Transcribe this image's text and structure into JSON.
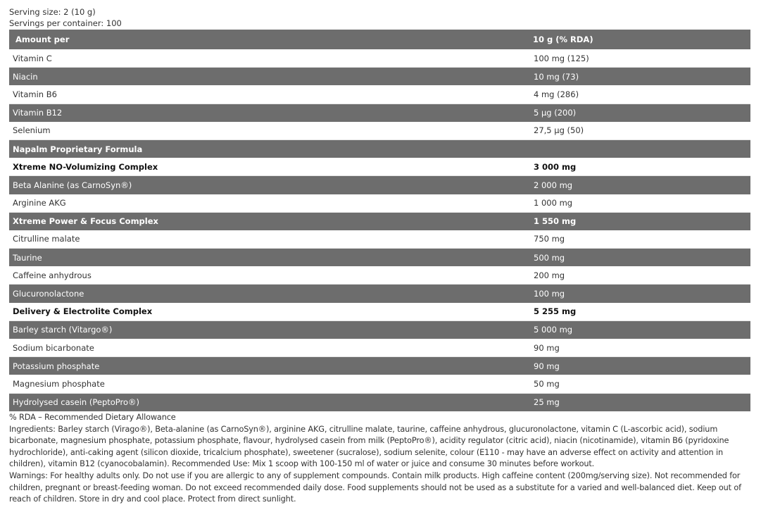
{
  "serving_size": "Serving size: 2 (10 g)",
  "servings_per_container": "Servings per container: 100",
  "table": {
    "header": [
      "Amount per",
      "10 g (% RDA)"
    ],
    "rows": [
      {
        "name": "Vitamin C",
        "value": "100 mg (125)",
        "style": "light"
      },
      {
        "name": "Niacin",
        "value": "10 mg (73)",
        "style": "dark"
      },
      {
        "name": "Vitamin B6",
        "value": "4 mg (286)",
        "style": "light"
      },
      {
        "name": "Vitamin B12",
        "value": "5 µg (200)",
        "style": "dark"
      },
      {
        "name": "Selenium",
        "value": "27,5 µg (50)",
        "style": "light"
      },
      {
        "name": "Napalm Proprietary Formula",
        "value": "",
        "style": "dark b"
      },
      {
        "name": "Xtreme NO-Volumizing Complex",
        "value": "3 000 mg",
        "style": "light b"
      },
      {
        "name": "Beta Alanine (as CarnoSyn®)",
        "value": "2 000 mg",
        "style": "dark"
      },
      {
        "name": "Arginine AKG",
        "value": "1 000 mg",
        "style": "light"
      },
      {
        "name": "Xtreme Power & Focus Complex",
        "value": "1 550 mg",
        "style": "dark b"
      },
      {
        "name": "Citrulline malate",
        "value": "750 mg",
        "style": "light"
      },
      {
        "name": "Taurine",
        "value": "500 mg",
        "style": "dark"
      },
      {
        "name": "Caffeine anhydrous",
        "value": "200 mg",
        "style": "light"
      },
      {
        "name": "Glucuronolactone",
        "value": "100 mg",
        "style": "dark"
      },
      {
        "name": "Delivery & Electrolite Complex",
        "value": "5 255 mg",
        "style": "light b"
      },
      {
        "name": "Barley starch (Vitargo®)",
        "value": "5 000 mg",
        "style": "dark"
      },
      {
        "name": "Sodium bicarbonate",
        "value": "90 mg",
        "style": "light"
      },
      {
        "name": "Potassium phosphate",
        "value": "90 mg",
        "style": "dark"
      },
      {
        "name": "Magnesium phosphate",
        "value": "50 mg",
        "style": "light"
      },
      {
        "name": "Hydrolysed casein (PeptoPro®)",
        "value": "25 mg",
        "style": "dark"
      }
    ]
  },
  "rda_note": "% RDA – Recommended Dietary Allowance",
  "ingredients": "Ingredients: Barley starch (Virago®), Beta-alanine (as CarnoSyn®), arginine AKG, citrulline malate, taurine, caffeine anhydrous, glucuronolactone, vitamin C (L-ascorbic acid), sodium bicarbonate, magnesium phosphate, potassium phosphate, flavour, hydrolysed casein from milk (PeptoPro®), acidity regulator (citric acid), niacin (nicotinamide), vitamin B6 (pyridoxine hydrochloride), anti-caking agent (silicon dioxide, tricalcium phosphate), sweetener (sucralose), sodium selenite, colour (E110 - may have an adverse effect on activity and attention in children), vitamin B12 (cyanocobalamin). Recommended Use: Mix 1 scoop with 100-150 ml of water or juice and consume 30 minutes before workout.",
  "warnings": "Warnings: For healthy adults only. Do not use if you are allergic to any of supplement compounds. Contain milk products. High caffeine content (200mg/serving size). Not recommended for children, pregnant or breast-feeding woman. Do not exceed recommended daily dose. Food supplements should not be used as a substitute for a varied and well-balanced diet. Keep out of reach of children. Store in dry and cool place. Protect from direct sunlight.",
  "colors": {
    "row_dark": "#6d6d6d",
    "row_light": "#ffffff"
  }
}
